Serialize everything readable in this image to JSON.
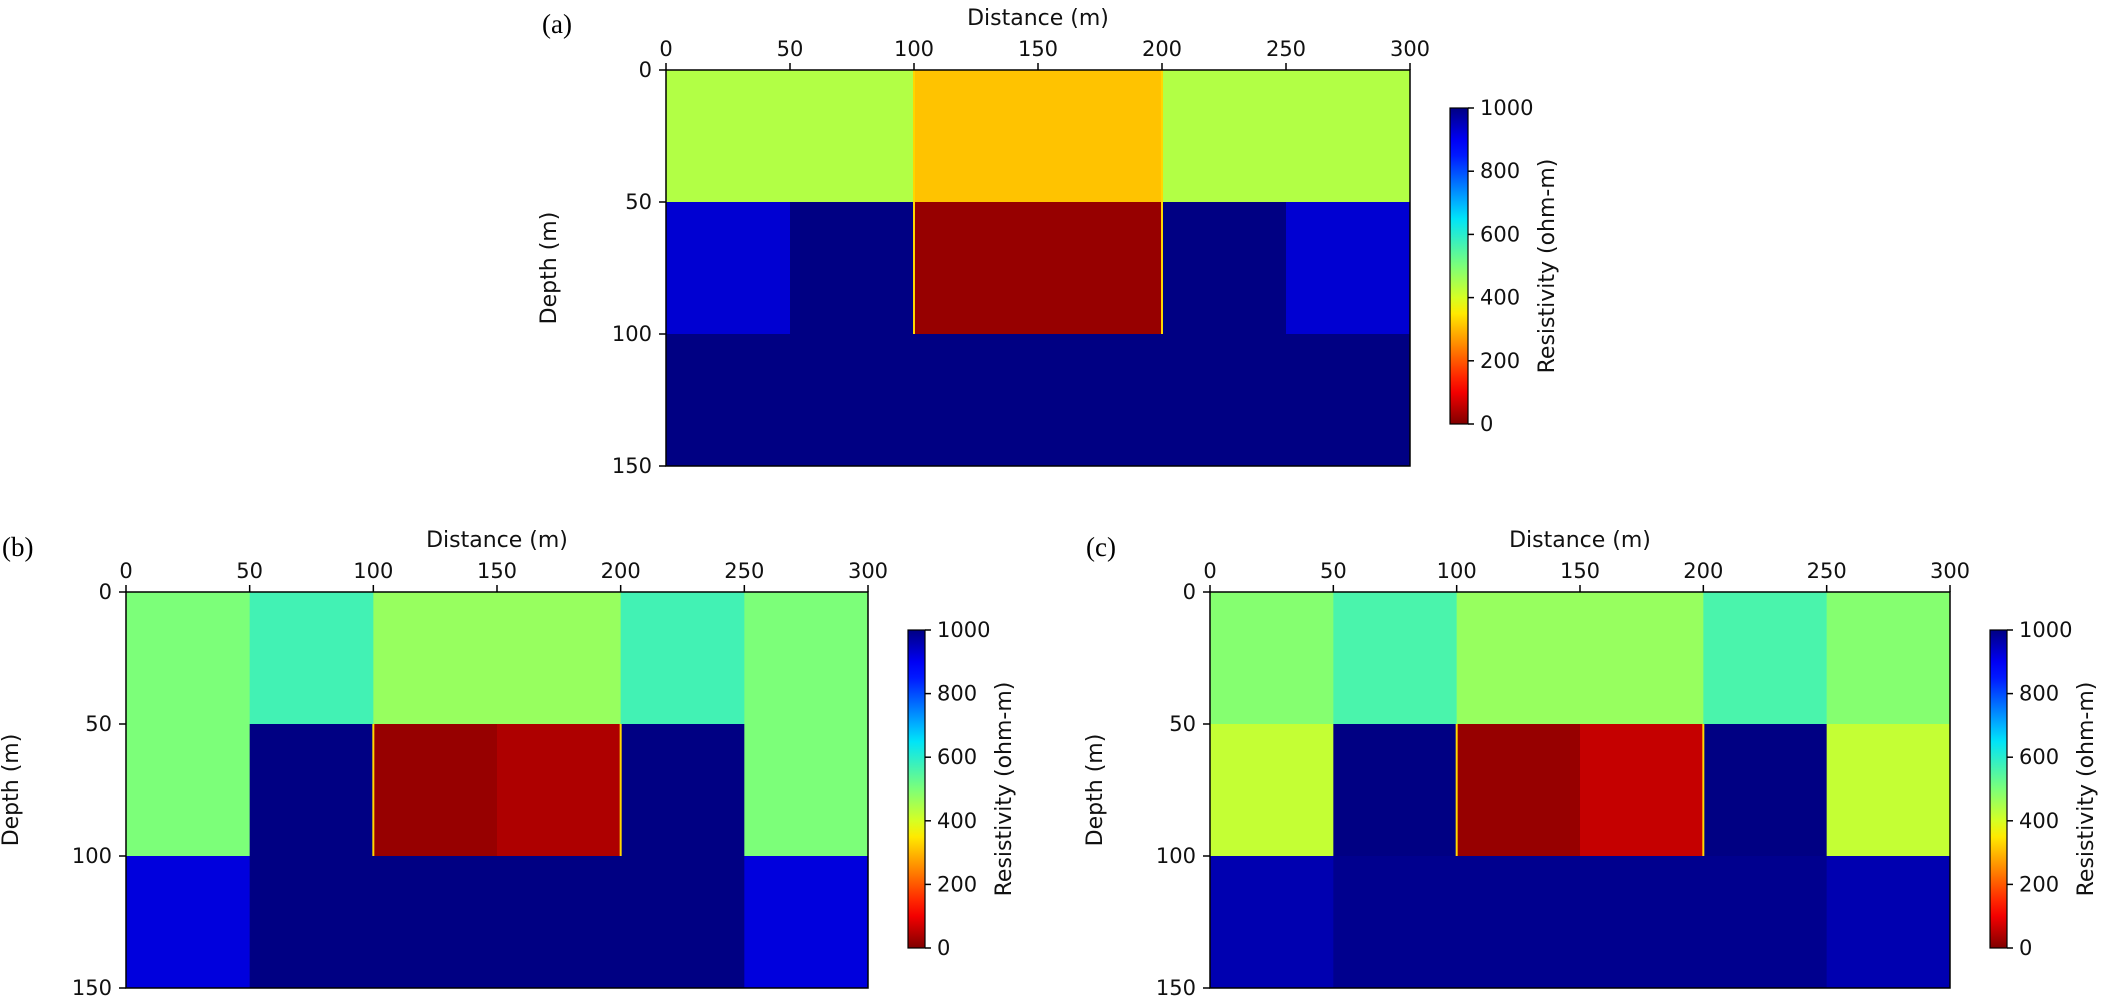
{
  "colors": {
    "axis": "#000000",
    "boundary": "#ffd700",
    "colormap": "jet_r"
  },
  "chart_data": [
    {
      "type": "heatmap",
      "panel_label": "(a)",
      "xlabel": "Distance (m)",
      "ylabel": "Depth (m)",
      "xlim": [
        0,
        300
      ],
      "ylim": [
        150,
        0
      ],
      "xticks": [
        "0",
        "50",
        "100",
        "150",
        "200",
        "250",
        "300"
      ],
      "yticks": [
        "0",
        "50",
        "100",
        "150"
      ],
      "x_edges": [
        0,
        50,
        100,
        150,
        200,
        250,
        300
      ],
      "y_edges": [
        0,
        50,
        100,
        150
      ],
      "values": [
        [
          440,
          440,
          310,
          310,
          440,
          440
        ],
        [
          930,
          1000,
          20,
          20,
          1000,
          930
        ],
        [
          1000,
          1000,
          1000,
          1000,
          1000,
          1000
        ]
      ],
      "boundary_box": {
        "x": [
          100,
          200
        ],
        "y": [
          0,
          100
        ]
      },
      "colorbar": {
        "label": "Resistivity (ohm-m)",
        "min": 0,
        "max": 1000,
        "ticks": [
          "0",
          "200",
          "400",
          "600",
          "800",
          "1000"
        ]
      }
    },
    {
      "type": "heatmap",
      "panel_label": "(b)",
      "xlabel": "Distance (m)",
      "ylabel": "Depth (m)",
      "xlim": [
        0,
        300
      ],
      "ylim": [
        150,
        0
      ],
      "xticks": [
        "0",
        "50",
        "100",
        "150",
        "200",
        "250",
        "300"
      ],
      "yticks": [
        "0",
        "50",
        "100",
        "150"
      ],
      "x_edges": [
        0,
        50,
        100,
        150,
        200,
        250,
        300
      ],
      "y_edges": [
        0,
        50,
        100,
        150
      ],
      "values": [
        [
          500,
          570,
          470,
          470,
          570,
          500
        ],
        [
          500,
          1000,
          20,
          40,
          1000,
          500
        ],
        [
          920,
          1000,
          1000,
          1000,
          1000,
          920
        ]
      ],
      "boundary_box": {
        "x": [
          100,
          200
        ],
        "y": [
          50,
          100
        ]
      },
      "colorbar": {
        "label": "Resistivity (ohm-m)",
        "min": 0,
        "max": 1000,
        "ticks": [
          "0",
          "200",
          "400",
          "600",
          "800",
          "1000"
        ]
      }
    },
    {
      "type": "heatmap",
      "panel_label": "(c)",
      "xlabel": "Distance (m)",
      "ylabel": "Depth (m)",
      "xlim": [
        0,
        300
      ],
      "ylim": [
        150,
        0
      ],
      "xticks": [
        "0",
        "50",
        "100",
        "150",
        "200",
        "250",
        "300"
      ],
      "yticks": [
        "0",
        "50",
        "100",
        "150"
      ],
      "x_edges": [
        0,
        50,
        100,
        150,
        200,
        250,
        300
      ],
      "y_edges": [
        0,
        50,
        100,
        150
      ],
      "values": [
        [
          490,
          560,
          470,
          470,
          560,
          490
        ],
        [
          420,
          1000,
          20,
          60,
          1000,
          420
        ],
        [
          960,
          990,
          990,
          990,
          990,
          960
        ]
      ],
      "boundary_box": {
        "x": [
          100,
          200
        ],
        "y": [
          50,
          100
        ]
      },
      "colorbar": {
        "label": "Resistivity (ohm-m)",
        "min": 0,
        "max": 1000,
        "ticks": [
          "0",
          "200",
          "400",
          "600",
          "800",
          "1000"
        ]
      }
    }
  ]
}
